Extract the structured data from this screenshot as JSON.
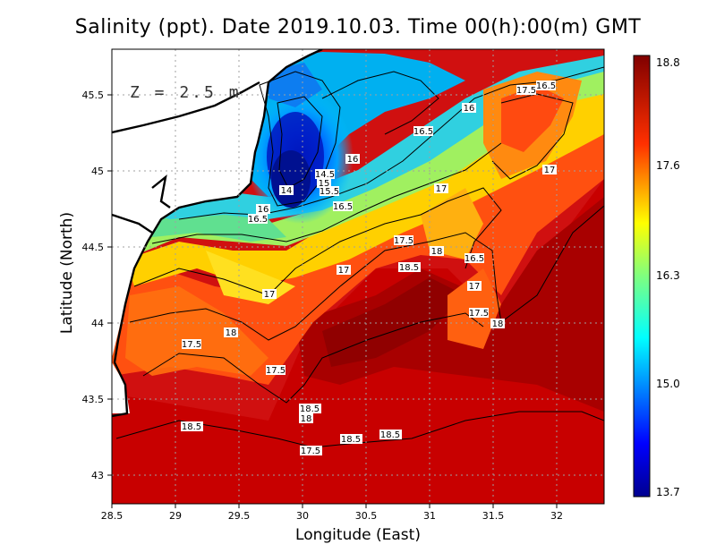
{
  "map": {
    "title": "Salinity (ppt). Date 2019.10.03. Time 00(h):00(m) GMT",
    "depth_label": "Z = 2.5 m",
    "x_axis_label": "Longitude (East)",
    "y_axis_label": "Latitude (North)",
    "x_ticks": [
      "28.5",
      "29",
      "29.5",
      "30",
      "30.5",
      "31",
      "31.5",
      "32"
    ],
    "y_ticks": [
      "45.5",
      "45",
      "44.5",
      "44",
      "43.5",
      "43"
    ],
    "colorbar_ticks": [
      "18.8",
      "17.6",
      "16.3",
      "15.0",
      "13.7"
    ],
    "contour_labels": [
      "17.5",
      "16.5",
      "16",
      "16.5",
      "16",
      "14.5",
      "15",
      "14",
      "15.5",
      "16.5",
      "16",
      "16.5",
      "17",
      "17",
      "17.5",
      "18",
      "16.5",
      "17",
      "18.5",
      "17",
      "17",
      "17.5",
      "18",
      "18",
      "17.5",
      "17.5",
      "18.5",
      "18",
      "18.5",
      "18.5",
      "18.5",
      "17.5"
    ],
    "colors": {
      "low": "#00008f",
      "mid": "#00ffff",
      "high": "#800000",
      "land": "#ffffff",
      "coastline": "#000000"
    },
    "value_range": [
      13.7,
      18.8
    ],
    "units": "ppt"
  }
}
